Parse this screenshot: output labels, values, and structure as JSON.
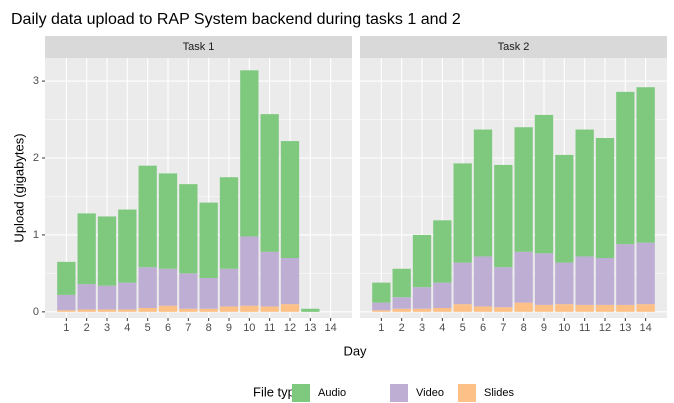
{
  "title": "Daily data upload to RAP System backend during tasks 1 and 2",
  "x_label": "Day",
  "y_label": "Upload (gigabytes)",
  "legend_title": "File type",
  "legend_position": "bottom",
  "chart_data": [
    {
      "type": "bar",
      "stacked": true,
      "title": "Task 1",
      "categories": [
        "1",
        "2",
        "3",
        "4",
        "5",
        "6",
        "7",
        "8",
        "9",
        "10",
        "11",
        "12",
        "13",
        "14"
      ],
      "series": [
        {
          "name": "Audio",
          "color": "#7fc97f",
          "values": [
            0.43,
            0.92,
            0.9,
            0.95,
            1.32,
            1.24,
            1.16,
            0.98,
            1.19,
            2.16,
            1.79,
            1.52,
            0.04,
            null
          ]
        },
        {
          "name": "Video",
          "color": "#beaed4",
          "values": [
            0.2,
            0.33,
            0.31,
            0.35,
            0.53,
            0.48,
            0.46,
            0.4,
            0.49,
            0.9,
            0.71,
            0.6,
            0,
            null
          ]
        },
        {
          "name": "Slides",
          "color": "#fdc086",
          "values": [
            0.02,
            0.03,
            0.03,
            0.03,
            0.05,
            0.08,
            0.04,
            0.04,
            0.07,
            0.08,
            0.07,
            0.1,
            0,
            null
          ]
        }
      ],
      "ylim": [
        -0.08,
        3.3
      ],
      "yticks": [
        0,
        1,
        2,
        3
      ],
      "grid": true
    },
    {
      "type": "bar",
      "stacked": true,
      "title": "Task 2",
      "categories": [
        "1",
        "2",
        "3",
        "4",
        "5",
        "6",
        "7",
        "8",
        "9",
        "10",
        "11",
        "12",
        "13",
        "14"
      ],
      "series": [
        {
          "name": "Audio",
          "color": "#7fc97f",
          "values": [
            0.26,
            0.37,
            0.68,
            0.81,
            1.29,
            1.65,
            1.33,
            1.62,
            1.8,
            1.4,
            1.65,
            1.56,
            1.98,
            2.02
          ]
        },
        {
          "name": "Video",
          "color": "#beaed4",
          "values": [
            0.1,
            0.15,
            0.28,
            0.33,
            0.54,
            0.65,
            0.52,
            0.66,
            0.67,
            0.54,
            0.63,
            0.61,
            0.79,
            0.8
          ]
        },
        {
          "name": "Slides",
          "color": "#fdc086",
          "values": [
            0.02,
            0.04,
            0.04,
            0.05,
            0.1,
            0.07,
            0.06,
            0.12,
            0.09,
            0.1,
            0.09,
            0.09,
            0.09,
            0.1
          ]
        }
      ],
      "ylim": [
        -0.08,
        3.3
      ],
      "yticks": [
        0,
        1,
        2,
        3
      ],
      "grid": true
    }
  ]
}
